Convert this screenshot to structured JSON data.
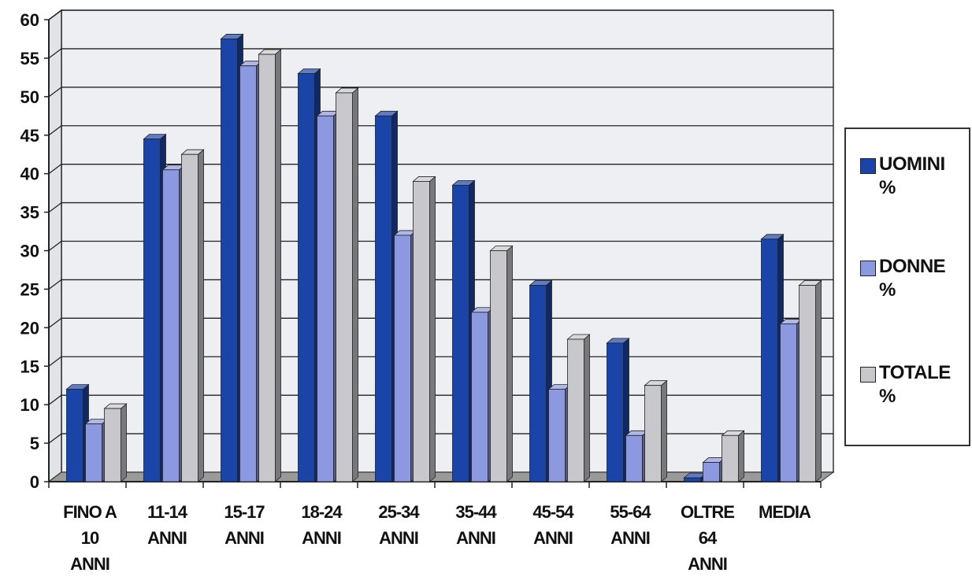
{
  "chart_data": {
    "type": "bar",
    "categories": [
      "FINO A\n10\nANNI",
      "11-14\nANNI",
      "15-17\nANNI",
      "18-24\nANNI",
      "25-34\nANNI",
      "35-44\nANNI",
      "45-54\nANNI",
      "55-64\nANNI",
      "OLTRE\n64\nANNI",
      "MEDIA"
    ],
    "series": [
      {
        "name": "UOMINI\n%",
        "color": "#1a44a8",
        "values": [
          12,
          44.5,
          57.5,
          53,
          47.5,
          38.5,
          25.5,
          18,
          0.5,
          31.5
        ]
      },
      {
        "name": "DONNE\n%",
        "color": "#8c98e0",
        "values": [
          7.5,
          40.5,
          54,
          47.5,
          32,
          22,
          12,
          6,
          2.5,
          20.5
        ]
      },
      {
        "name": "TOTALE\n%",
        "color": "#c8c8cc",
        "values": [
          9.5,
          42.5,
          55.5,
          50.5,
          39,
          30,
          18.5,
          12.5,
          6,
          25.5
        ]
      }
    ],
    "ylim": [
      0,
      60
    ],
    "yticks": [
      "0",
      "5",
      "10",
      "15",
      "20",
      "25",
      "30",
      "35",
      "40",
      "45",
      "50",
      "55",
      "60"
    ],
    "grid": true,
    "legend_position": "right",
    "title": "",
    "xlabel": "",
    "ylabel": ""
  }
}
